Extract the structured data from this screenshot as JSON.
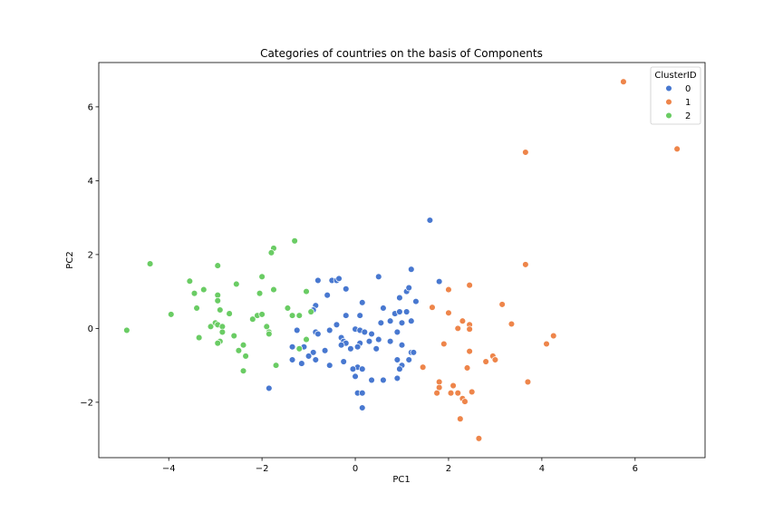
{
  "chart_data": {
    "type": "scatter",
    "title": "Categories of countries on the basis of Components",
    "xlabel": "PC1",
    "ylabel": "PC2",
    "xlim": [
      -5.5,
      7.5
    ],
    "ylim": [
      -3.5,
      7.2
    ],
    "xticks": [
      -4,
      -2,
      0,
      2,
      4,
      6
    ],
    "yticks": [
      -2,
      0,
      2,
      4,
      6
    ],
    "xtick_labels": [
      "−4",
      "−2",
      "0",
      "2",
      "4",
      "6"
    ],
    "ytick_labels": [
      "−2",
      "0",
      "2",
      "4",
      "6"
    ],
    "grid": false,
    "legend": {
      "title": "ClusterID",
      "placement": "top-right"
    },
    "series": [
      {
        "name": "0",
        "color": "#4878d0",
        "points": [
          [
            1.6,
            2.93
          ],
          [
            -1.85,
            -1.62
          ],
          [
            -0.8,
            1.3
          ],
          [
            -0.5,
            1.3
          ],
          [
            -0.4,
            1.3
          ],
          [
            -0.35,
            1.35
          ],
          [
            -0.2,
            1.07
          ],
          [
            0.5,
            1.4
          ],
          [
            -0.6,
            0.9
          ],
          [
            1.2,
            1.6
          ],
          [
            1.8,
            1.27
          ],
          [
            1.1,
            1.0
          ],
          [
            1.15,
            1.1
          ],
          [
            -0.85,
            0.62
          ],
          [
            -0.9,
            0.5
          ],
          [
            0.15,
            0.7
          ],
          [
            0.95,
            0.83
          ],
          [
            1.3,
            0.73
          ],
          [
            0.6,
            0.55
          ],
          [
            -0.2,
            0.35
          ],
          [
            0.1,
            0.35
          ],
          [
            0.85,
            0.4
          ],
          [
            0.95,
            0.45
          ],
          [
            1.1,
            0.45
          ],
          [
            -0.4,
            0.1
          ],
          [
            0.0,
            -0.02
          ],
          [
            0.1,
            -0.05
          ],
          [
            0.2,
            -0.1
          ],
          [
            -1.25,
            -0.05
          ],
          [
            -0.55,
            -0.05
          ],
          [
            0.55,
            0.15
          ],
          [
            0.75,
            0.2
          ],
          [
            1.0,
            0.15
          ],
          [
            1.2,
            0.2
          ],
          [
            0.9,
            -0.1
          ],
          [
            -0.85,
            -0.1
          ],
          [
            -0.8,
            -0.15
          ],
          [
            -0.3,
            -0.25
          ],
          [
            -0.25,
            -0.35
          ],
          [
            -0.2,
            -0.4
          ],
          [
            0.1,
            -0.4
          ],
          [
            0.3,
            -0.35
          ],
          [
            0.5,
            -0.3
          ],
          [
            0.75,
            -0.35
          ],
          [
            -1.35,
            -0.5
          ],
          [
            -1.1,
            -0.5
          ],
          [
            -0.65,
            -0.6
          ],
          [
            -0.9,
            -0.65
          ],
          [
            -0.3,
            -0.45
          ],
          [
            -0.1,
            -0.55
          ],
          [
            0.05,
            -0.5
          ],
          [
            0.45,
            -0.55
          ],
          [
            1.0,
            -0.45
          ],
          [
            1.2,
            -0.65
          ],
          [
            1.25,
            -0.65
          ],
          [
            -1.35,
            -0.85
          ],
          [
            -1.0,
            -0.75
          ],
          [
            -0.85,
            -0.85
          ],
          [
            -0.55,
            -1.0
          ],
          [
            -1.15,
            -0.95
          ],
          [
            0.05,
            -1.05
          ],
          [
            0.15,
            -1.1
          ],
          [
            -0.05,
            -1.1
          ],
          [
            0.35,
            -1.4
          ],
          [
            0.6,
            -1.4
          ],
          [
            0.9,
            -0.85
          ],
          [
            1.15,
            -0.85
          ],
          [
            1.0,
            -1.0
          ],
          [
            0.95,
            -1.1
          ],
          [
            0.9,
            -1.35
          ],
          [
            0.0,
            -1.3
          ],
          [
            -0.25,
            -0.9
          ],
          [
            0.05,
            -1.75
          ],
          [
            0.15,
            -1.75
          ],
          [
            0.15,
            -2.15
          ],
          [
            0.35,
            -0.15
          ]
        ]
      },
      {
        "name": "1",
        "color": "#ee854a",
        "points": [
          [
            5.75,
            6.68
          ],
          [
            6.9,
            4.86
          ],
          [
            3.65,
            4.77
          ],
          [
            3.65,
            1.73
          ],
          [
            2.45,
            1.17
          ],
          [
            2.0,
            1.05
          ],
          [
            3.15,
            0.65
          ],
          [
            1.65,
            0.57
          ],
          [
            2.0,
            0.42
          ],
          [
            2.3,
            0.2
          ],
          [
            2.45,
            0.1
          ],
          [
            2.2,
            0.0
          ],
          [
            2.45,
            -0.02
          ],
          [
            3.35,
            0.12
          ],
          [
            4.25,
            -0.2
          ],
          [
            4.1,
            -0.42
          ],
          [
            1.9,
            -0.42
          ],
          [
            2.45,
            -0.62
          ],
          [
            2.8,
            -0.9
          ],
          [
            2.95,
            -0.75
          ],
          [
            3.0,
            -0.85
          ],
          [
            1.45,
            -1.05
          ],
          [
            2.4,
            -1.07
          ],
          [
            1.8,
            -1.45
          ],
          [
            2.1,
            -1.55
          ],
          [
            1.8,
            -1.6
          ],
          [
            1.75,
            -1.75
          ],
          [
            2.05,
            -1.75
          ],
          [
            2.2,
            -1.75
          ],
          [
            2.3,
            -1.9
          ],
          [
            2.35,
            -1.98
          ],
          [
            2.5,
            -1.72
          ],
          [
            3.7,
            -1.45
          ],
          [
            2.25,
            -2.45
          ],
          [
            2.65,
            -2.98
          ]
        ]
      },
      {
        "name": "2",
        "color": "#6acc64",
        "points": [
          [
            -4.9,
            -0.05
          ],
          [
            -4.4,
            1.75
          ],
          [
            -3.95,
            0.38
          ],
          [
            -1.75,
            2.17
          ],
          [
            -1.3,
            2.37
          ],
          [
            -1.8,
            2.05
          ],
          [
            -3.55,
            1.28
          ],
          [
            -3.45,
            0.95
          ],
          [
            -3.25,
            1.05
          ],
          [
            -2.95,
            1.7
          ],
          [
            -2.55,
            1.2
          ],
          [
            -2.0,
            1.4
          ],
          [
            -1.75,
            1.05
          ],
          [
            -1.05,
            1.0
          ],
          [
            -2.05,
            0.95
          ],
          [
            -3.4,
            0.55
          ],
          [
            -2.95,
            0.9
          ],
          [
            -2.95,
            0.75
          ],
          [
            -2.9,
            0.5
          ],
          [
            -2.7,
            0.4
          ],
          [
            -1.45,
            0.55
          ],
          [
            -1.2,
            0.35
          ],
          [
            -1.35,
            0.35
          ],
          [
            -2.2,
            0.25
          ],
          [
            -2.1,
            0.35
          ],
          [
            -2.0,
            0.38
          ],
          [
            -3.1,
            0.05
          ],
          [
            -3.0,
            0.15
          ],
          [
            -2.95,
            0.1
          ],
          [
            -2.85,
            0.05
          ],
          [
            -1.9,
            0.05
          ],
          [
            -1.85,
            -0.1
          ],
          [
            -1.85,
            -0.15
          ],
          [
            -2.85,
            -0.1
          ],
          [
            -2.6,
            -0.2
          ],
          [
            -3.35,
            -0.25
          ],
          [
            -2.9,
            -0.35
          ],
          [
            -2.95,
            -0.4
          ],
          [
            -2.4,
            -0.45
          ],
          [
            -2.5,
            -0.6
          ],
          [
            -2.35,
            -0.75
          ],
          [
            -1.2,
            -0.55
          ],
          [
            -0.95,
            0.45
          ],
          [
            -1.7,
            -1.0
          ],
          [
            -1.05,
            -0.3
          ],
          [
            -2.4,
            -1.15
          ]
        ]
      }
    ]
  }
}
